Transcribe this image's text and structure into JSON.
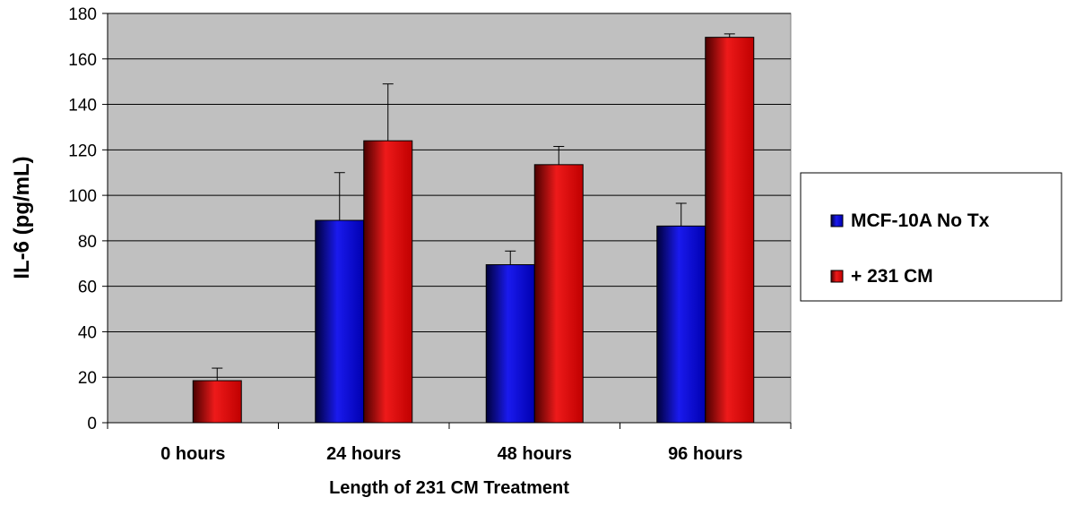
{
  "chart_data": {
    "type": "bar",
    "title": "",
    "xlabel": "Length of 231 CM Treatment",
    "ylabel": "IL-6 (pg/mL)",
    "ylim": [
      0,
      180
    ],
    "yticks": [
      0,
      20,
      40,
      60,
      80,
      100,
      120,
      140,
      160,
      180
    ],
    "categories": [
      "0 hours",
      "24 hours",
      "48 hours",
      "96 hours"
    ],
    "series": [
      {
        "name": "MCF-10A No Tx",
        "color": "#0000cc",
        "values": [
          0,
          89,
          69.5,
          86.5
        ],
        "errors": [
          0,
          21,
          6,
          10
        ]
      },
      {
        "name": "+ 231 CM",
        "color": "#cc0000",
        "values": [
          18.5,
          124,
          113.5,
          169.5
        ],
        "errors": [
          5.5,
          25,
          8,
          1.5
        ]
      }
    ],
    "grid": true,
    "plot_background": "#c0c0c0",
    "legend_position": "right"
  }
}
